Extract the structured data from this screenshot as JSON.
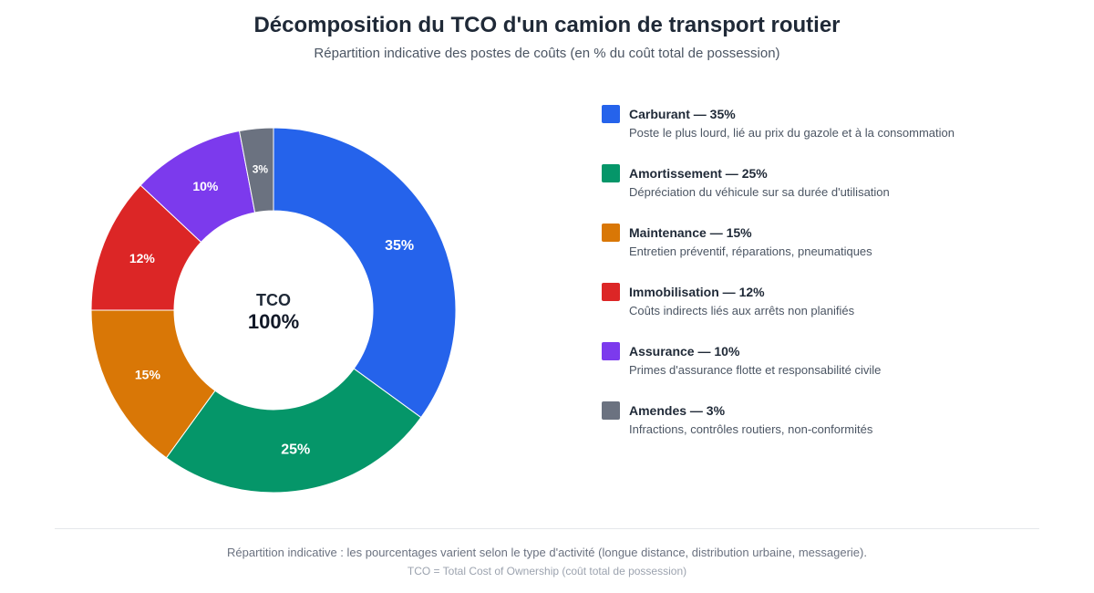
{
  "chart_data": {
    "type": "pie",
    "variant": "donut",
    "title": "Décomposition du TCO d'un camion de transport routier",
    "subtitle": "Répartition indicative des postes de coûts (en % du coût total de possession)",
    "unit": "%",
    "center": {
      "label": "TCO",
      "value": "100%"
    },
    "slices": [
      {
        "name": "Carburant",
        "value": 35,
        "label": "35%",
        "legend": "Carburant — 35%",
        "description": "Poste le plus lourd, lié au prix du gazole et à la consommation",
        "color": "#2563eb"
      },
      {
        "name": "Amortissement",
        "value": 25,
        "label": "25%",
        "legend": "Amortissement — 25%",
        "description": "Dépréciation du véhicule sur sa durée d'utilisation",
        "color": "#059669"
      },
      {
        "name": "Maintenance",
        "value": 15,
        "label": "15%",
        "legend": "Maintenance — 15%",
        "description": "Entretien préventif, réparations, pneumatiques",
        "color": "#d97706"
      },
      {
        "name": "Immobilisation",
        "value": 12,
        "label": "12%",
        "legend": "Immobilisation — 12%",
        "description": "Coûts indirects liés aux arrêts non planifiés",
        "color": "#dc2626"
      },
      {
        "name": "Assurance",
        "value": 10,
        "label": "10%",
        "legend": "Assurance — 10%",
        "description": "Primes d'assurance flotte et responsabilité civile",
        "color": "#7c3aed"
      },
      {
        "name": "Amendes",
        "value": 3,
        "label": "3%",
        "legend": "Amendes — 3%",
        "description": "Infractions, contrôles routiers, non-conformités",
        "color": "#6b7280"
      }
    ],
    "legend_position": "right"
  },
  "footer": {
    "note": "Répartition indicative : les pourcentages varient selon le type d'activité (longue distance, distribution urbaine, messagerie).",
    "definition": "TCO = Total Cost of Ownership (coût total de possession)"
  }
}
